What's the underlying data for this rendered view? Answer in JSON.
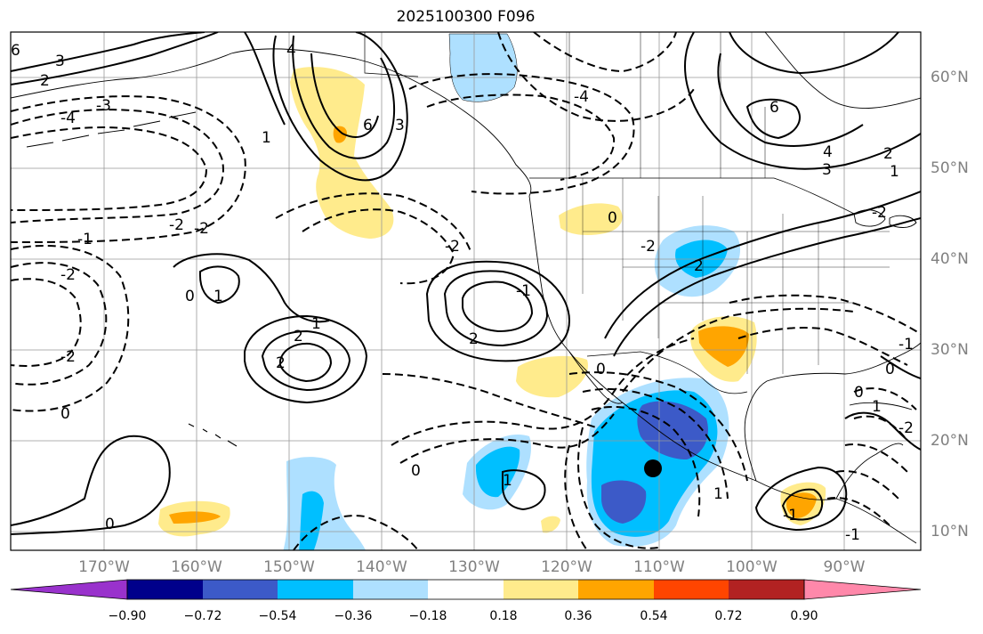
{
  "title": "2025100300 F096",
  "latitude_labels": [
    "60°N",
    "50°N",
    "40°N",
    "30°N",
    "20°N",
    "10°N"
  ],
  "longitude_labels": [
    "170°W",
    "160°W",
    "150°W",
    "140°W",
    "130°W",
    "120°W",
    "110°W",
    "100°W",
    "90°W"
  ],
  "colorbar": {
    "ticks": [
      "−0.90",
      "−0.72",
      "−0.54",
      "−0.36",
      "−0.18",
      "0.18",
      "0.36",
      "0.54",
      "0.72",
      "0.90"
    ],
    "colors": [
      "#9932cc",
      "#00008b",
      "#3c5ac8",
      "#00bfff",
      "#aee0ff",
      "#ffffff",
      "#ffeb8c",
      "#ffa500",
      "#ff4500",
      "#b22222",
      "#ff88aa"
    ]
  },
  "contour_labels": [
    "6",
    "3",
    "2",
    "-4",
    "-3",
    "4",
    "6",
    "3",
    "1",
    "-4",
    "-2",
    "-2",
    "-1",
    "-2",
    "-2",
    "0",
    "1",
    "-2",
    "0",
    "2",
    "1",
    "2",
    "2",
    "-1",
    "0",
    "-2",
    "2",
    "0",
    "6",
    "4",
    "3",
    "2",
    "1",
    "-2",
    "0",
    "-2",
    "0",
    "1",
    "-1",
    "1",
    "-1",
    "-1",
    "0",
    "0",
    "1"
  ],
  "marker": "storm-center-dot"
}
